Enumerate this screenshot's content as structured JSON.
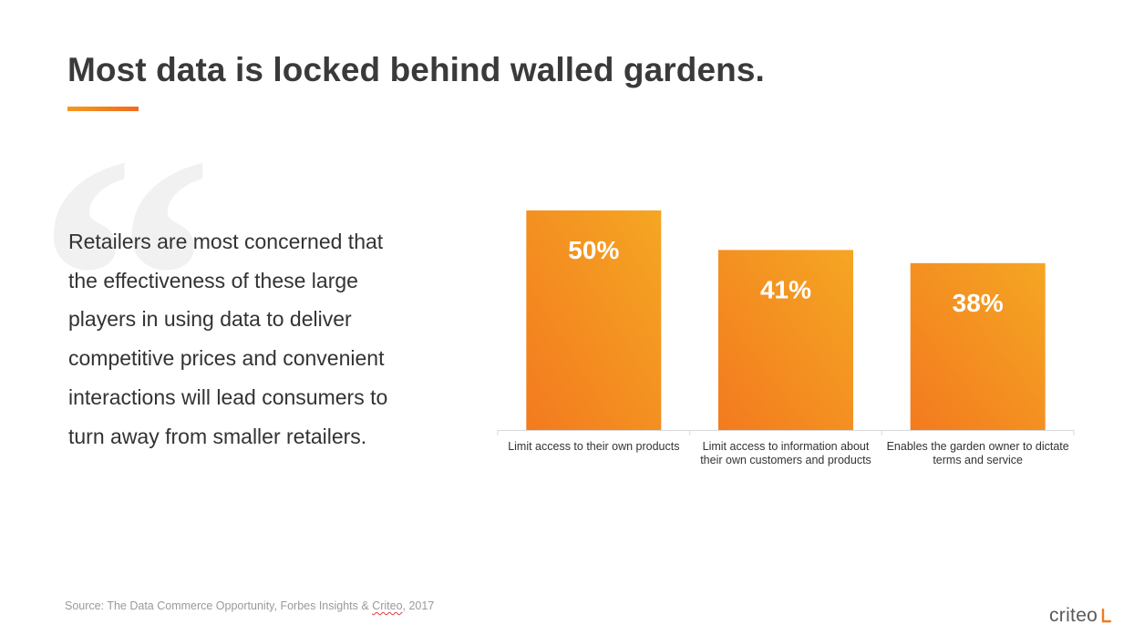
{
  "slide": {
    "title": "Most data is locked behind walled gardens.",
    "quote_mark": "“",
    "quote_lines": [
      "Retailers are most concerned that",
      "the effectiveness of these large",
      "players in using data to deliver",
      "competitive prices and convenient",
      "interactions will lead consumers to",
      "turn away from smaller retailers."
    ],
    "source_prefix": "Source: The Data Commerce Opportunity, Forbes Insights & ",
    "source_brand": "Criteo",
    "source_suffix": ", 2017",
    "logo_text": "criteo",
    "colors": {
      "accent_light": "#f5a623",
      "accent_dark": "#f37a1f",
      "title": "#3a3a3a",
      "muted": "#9a9a9a"
    }
  },
  "chart_data": {
    "type": "bar",
    "categories": [
      [
        "Limit access to their own products"
      ],
      [
        "Limit access to information about",
        "their own customers and products"
      ],
      [
        "Enables the garden owner to dictate",
        "terms and service"
      ]
    ],
    "values": [
      50,
      41,
      38
    ],
    "value_labels": [
      "50%",
      "41%",
      "38%"
    ],
    "unit": "%",
    "ylim": [
      0,
      50
    ],
    "grid": false,
    "legend": "none"
  }
}
